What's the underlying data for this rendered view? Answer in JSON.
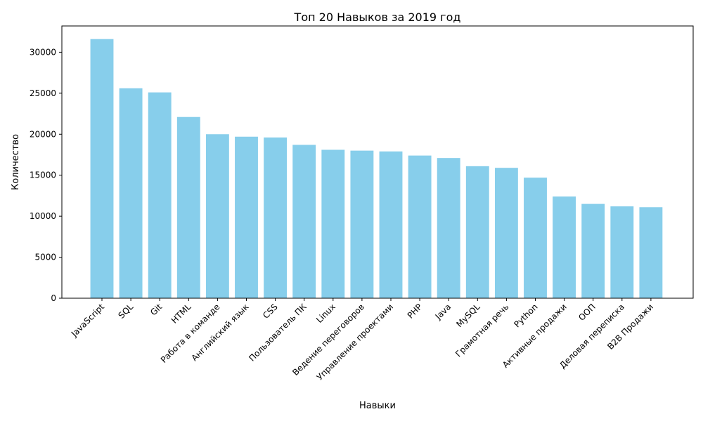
{
  "chart_data": {
    "type": "bar",
    "title": "Топ 20 Навыков за 2019 год",
    "xlabel": "Навыки",
    "ylabel": "Количество",
    "bar_color": "#87CEEB",
    "ylim": [
      0,
      33200
    ],
    "yticks": [
      0,
      5000,
      10000,
      15000,
      20000,
      25000,
      30000
    ],
    "grid": false,
    "categories": [
      "JavaScript",
      "SQL",
      "Git",
      "HTML",
      "Работа в команде",
      "Английский язык",
      "CSS",
      "Пользователь ПК",
      "Linux",
      "Ведение переговоров",
      "Управление проектами",
      "PHP",
      "Java",
      "MySQL",
      "Грамотная речь",
      "Python",
      "Активные продажи",
      "ООП",
      "Деловая переписка",
      "B2B Продажи"
    ],
    "values": [
      31600,
      25600,
      25100,
      22100,
      20000,
      19700,
      19600,
      18700,
      18100,
      18000,
      17900,
      17400,
      17100,
      16100,
      15900,
      14700,
      12400,
      11500,
      11200,
      11100
    ]
  }
}
